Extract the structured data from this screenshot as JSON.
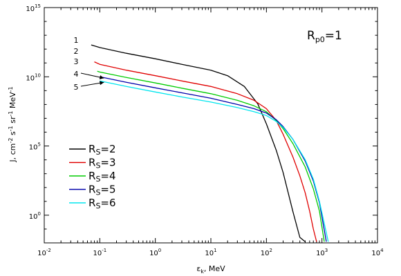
{
  "chart_data": {
    "type": "line",
    "title": "",
    "annotation": {
      "base": "R",
      "sub": "p0",
      "suffix": "=1"
    },
    "xlabel": {
      "base": "ε",
      "sub": "k",
      "suffix": ", MeV"
    },
    "ylabel": {
      "segments": [
        {
          "t": "J, cm",
          "sup": false
        },
        {
          "t": "-2",
          "sup": true
        },
        {
          "t": " s",
          "sup": false
        },
        {
          "t": "-1",
          "sup": true
        },
        {
          "t": " sr",
          "sup": false
        },
        {
          "t": "-1",
          "sup": true
        },
        {
          "t": " MeV",
          "sup": false
        },
        {
          "t": "-1",
          "sup": true
        }
      ]
    },
    "x_scale": "log",
    "y_scale": "log",
    "xlim": [
      0.01,
      10000
    ],
    "ylim": [
      0.01,
      1000000000000000.0
    ],
    "x_ticks": [
      {
        "value": 0.01,
        "base": "10",
        "exp": "-2"
      },
      {
        "value": 0.1,
        "base": "10",
        "exp": "-1"
      },
      {
        "value": 1,
        "base": "10",
        "exp": "0"
      },
      {
        "value": 10,
        "base": "10",
        "exp": "1"
      },
      {
        "value": 100,
        "base": "10",
        "exp": "2"
      },
      {
        "value": 1000,
        "base": "10",
        "exp": "3"
      },
      {
        "value": 10000,
        "base": "10",
        "exp": "4"
      }
    ],
    "y_ticks": [
      {
        "value": 1,
        "base": "10",
        "exp": "0"
      },
      {
        "value": 100000,
        "base": "10",
        "exp": "5"
      },
      {
        "value": 10000000000.0,
        "base": "10",
        "exp": "10"
      },
      {
        "value": 1000000000000000.0,
        "base": "10",
        "exp": "15"
      }
    ],
    "series": [
      {
        "label_base": "R",
        "label_sub": "S",
        "label_suffix": "=2",
        "curve_label": "1",
        "color": "#000000",
        "x": [
          0.07,
          0.1,
          0.3,
          1,
          3,
          10,
          20,
          40,
          70,
          100,
          150,
          200,
          300,
          400,
          500
        ],
        "y": [
          2000000000000.0,
          1300000000000.0,
          500000000000.0,
          200000000000.0,
          80000000000.0,
          30000000000.0,
          12000000000.0,
          2000000000.0,
          110000000.0,
          4000000.0,
          50000.0,
          1200.0,
          1.8,
          0.025,
          0.012
        ]
      },
      {
        "label_base": "R",
        "label_sub": "S",
        "label_suffix": "=3",
        "curve_label": "2",
        "color": "#e00000",
        "x": [
          0.08,
          0.1,
          0.3,
          1,
          3,
          10,
          30,
          60,
          100,
          150,
          200,
          300,
          400,
          500,
          600,
          700,
          800
        ],
        "y": [
          120000000000.0,
          80000000000.0,
          30000000000.0,
          12000000000.0,
          5000000000.0,
          2000000000.0,
          600000000.0,
          200000000.0,
          50000000.0,
          7000000.0,
          700000.0,
          16000.0,
          700,
          40,
          2,
          0.1,
          0.012
        ]
      },
      {
        "label_base": "R",
        "label_sub": "S",
        "label_suffix": "=4",
        "curve_label": "3",
        "color": "#00cc00",
        "x": [
          0.09,
          0.1,
          0.3,
          1,
          3,
          10,
          30,
          60,
          100,
          150,
          200,
          300,
          500,
          700,
          900,
          1100
        ],
        "y": [
          25000000000.0,
          22000000000.0,
          9000000000.0,
          3600000000.0,
          1500000000.0,
          600000000.0,
          200000000.0,
          80000000.0,
          30000000.0,
          7000000.0,
          1800000.0,
          150000.0,
          3000.0,
          80,
          2,
          0.012
        ]
      },
      {
        "label_base": "R",
        "label_sub": "S",
        "label_suffix": "=5",
        "curve_label": "4",
        "color": "#0000aa",
        "x": [
          0.1,
          0.3,
          1,
          3,
          10,
          30,
          60,
          100,
          150,
          200,
          300,
          500,
          700,
          900,
          1200
        ],
        "y": [
          10000000000.0,
          4000000000.0,
          1600000000.0,
          700000000.0,
          280000000.0,
          100000000.0,
          50000000.0,
          24000000.0,
          8000000.0,
          2500000.0,
          300000.0,
          8000.0,
          300,
          8,
          0.012
        ]
      },
      {
        "label_base": "R",
        "label_sub": "S",
        "label_suffix": "=6",
        "curve_label": "5",
        "color": "#00e5ee",
        "x": [
          0.1,
          0.3,
          1,
          3,
          10,
          30,
          60,
          100,
          150,
          200,
          300,
          500,
          700,
          900,
          1300
        ],
        "y": [
          5000000000.0,
          2000000000.0,
          800000000.0,
          350000000.0,
          150000000.0,
          60000000.0,
          30000000.0,
          16000000.0,
          6000000.0,
          2200000.0,
          300000.0,
          10000.0,
          400,
          10,
          0.012
        ]
      }
    ],
    "legend_position": "lower-left",
    "grid": false
  }
}
